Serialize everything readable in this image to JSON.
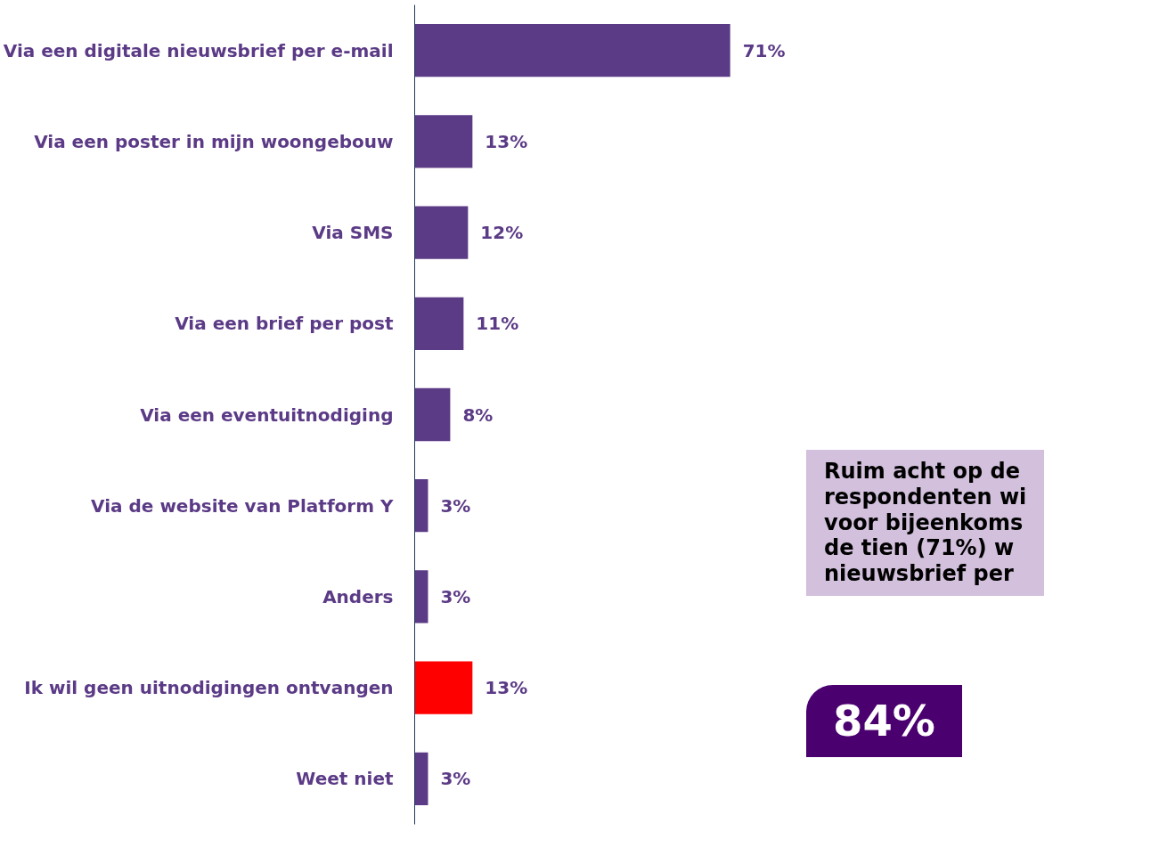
{
  "chart_data": {
    "type": "bar",
    "orientation": "horizontal",
    "categories": [
      "Via een digitale nieuwsbrief per e-mail",
      "Via een poster in mijn woongebouw",
      "Via SMS",
      "Via een brief per post",
      "Via een eventuitnodiging",
      "Via de website van Platform Y",
      "Anders",
      "Ik wil geen uitnodigingen ontvangen",
      "Weet niet"
    ],
    "values": [
      71,
      13,
      12,
      11,
      8,
      3,
      3,
      13,
      3
    ],
    "value_labels": [
      "71%",
      "13%",
      "12%",
      "11%",
      "8%",
      "3%",
      "3%",
      "13%",
      "3%"
    ],
    "colors": [
      "#5b3a86",
      "#5b3a86",
      "#5b3a86",
      "#5b3a86",
      "#5b3a86",
      "#5b3a86",
      "#5b3a86",
      "#ff0000",
      "#5b3a86"
    ],
    "tick_labels": "y",
    "grid": false,
    "annotations": [
      "Ruim acht op de\nrespondenten wi\nvoor bijeenkoms\nde tien (71%) w\nnieuwsbrief per",
      "84%"
    ]
  }
}
